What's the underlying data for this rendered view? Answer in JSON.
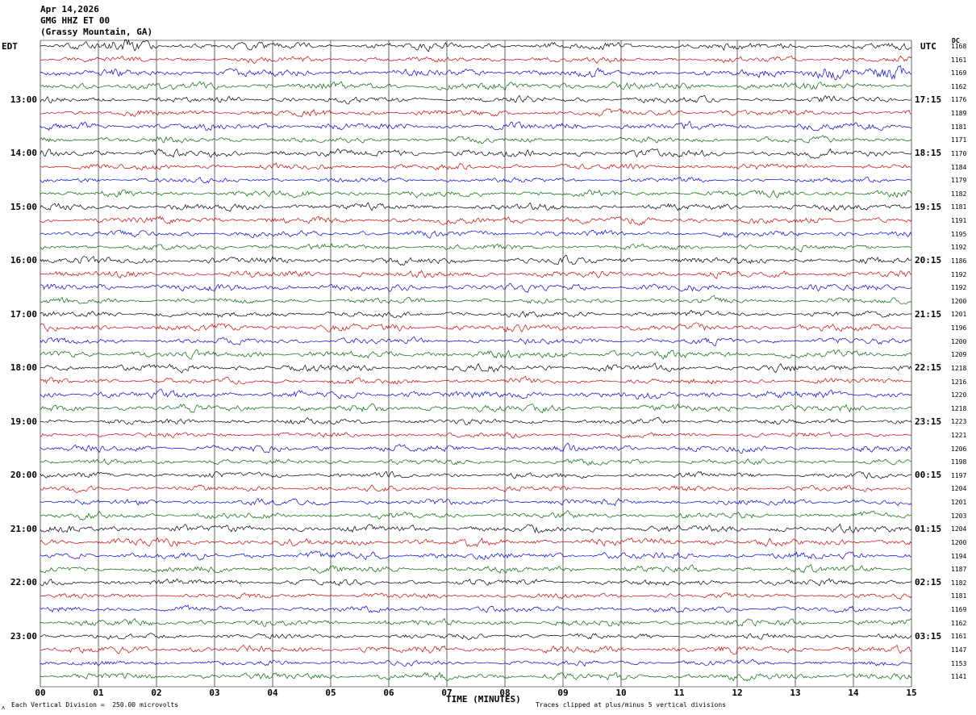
{
  "header": {
    "date": "Apr 14,2026",
    "station": "GMG HHZ ET 00",
    "location": "(Grassy Mountain, GA)"
  },
  "axis": {
    "left_timezone": "EDT",
    "right_timezone": "UTC",
    "dc_header": "DC"
  },
  "footer": {
    "scale_note": "Each Vertical Division =  250.00 microvolts",
    "clip_note": "Traces clipped at plus/minus 5 vertical divisions",
    "corner_glyph": "ʌ"
  },
  "chart_data": {
    "type": "line",
    "subtype": "helicorder seismogram, 48 rows of 15 minutes each",
    "title": "GMG HHZ ET 00 (Grassy Mountain, GA) Apr 14,2026",
    "xlabel": "TIME (MINUTES)",
    "x_tick_labels": [
      "00",
      "01",
      "02",
      "03",
      "04",
      "05",
      "06",
      "07",
      "08",
      "09",
      "10",
      "11",
      "12",
      "13",
      "14",
      "15"
    ],
    "x_range_minutes": [
      0,
      15
    ],
    "rows": 48,
    "minutes_per_row": 15,
    "row_color_cycle": [
      "black",
      "red",
      "blue",
      "green"
    ],
    "color_hex": {
      "black": "#000000",
      "red": "#cc0000",
      "blue": "#0000cc",
      "green": "#006600"
    },
    "grid_color": "#000000",
    "first_hour_label_row_index": 4,
    "hour_label_row_interval": 4,
    "left_hour_labels_edt": [
      "13:00",
      "14:00",
      "15:00",
      "16:00",
      "17:00",
      "18:00",
      "19:00",
      "20:00",
      "21:00",
      "22:00",
      "23:00"
    ],
    "right_hour_labels_utc": [
      "17:15",
      "18:15",
      "19:15",
      "20:15",
      "21:15",
      "22:15",
      "23:15",
      "00:15",
      "01:15",
      "02:15",
      "03:15"
    ],
    "dc_values": [
      1168,
      1161,
      1169,
      1162,
      1176,
      1189,
      1181,
      1171,
      1170,
      1184,
      1179,
      1182,
      1181,
      1191,
      1195,
      1192,
      1186,
      1192,
      1192,
      1200,
      1201,
      1196,
      1200,
      1209,
      1218,
      1216,
      1220,
      1218,
      1223,
      1221,
      1206,
      1198,
      1197,
      1204,
      1201,
      1203,
      1204,
      1200,
      1194,
      1187,
      1182,
      1181,
      1169,
      1162,
      1161,
      1147,
      1153,
      1141
    ],
    "clip_divisions": 5,
    "microvolts_per_division": 250.0,
    "visible_events": [
      {
        "row_index": 2,
        "trace_color": "blue",
        "start_minute": 13.05,
        "end_minute": 15.0,
        "amplitude_boost": 3.5,
        "description": "high-amplitude seismic burst near minutes 13-15 of the third row"
      },
      {
        "row_index": 0,
        "trace_color": "black",
        "start_minute": 1.0,
        "end_minute": 2.1,
        "amplitude_boost": 1.3,
        "description": "small burst near minute 1 of the first row"
      }
    ]
  }
}
